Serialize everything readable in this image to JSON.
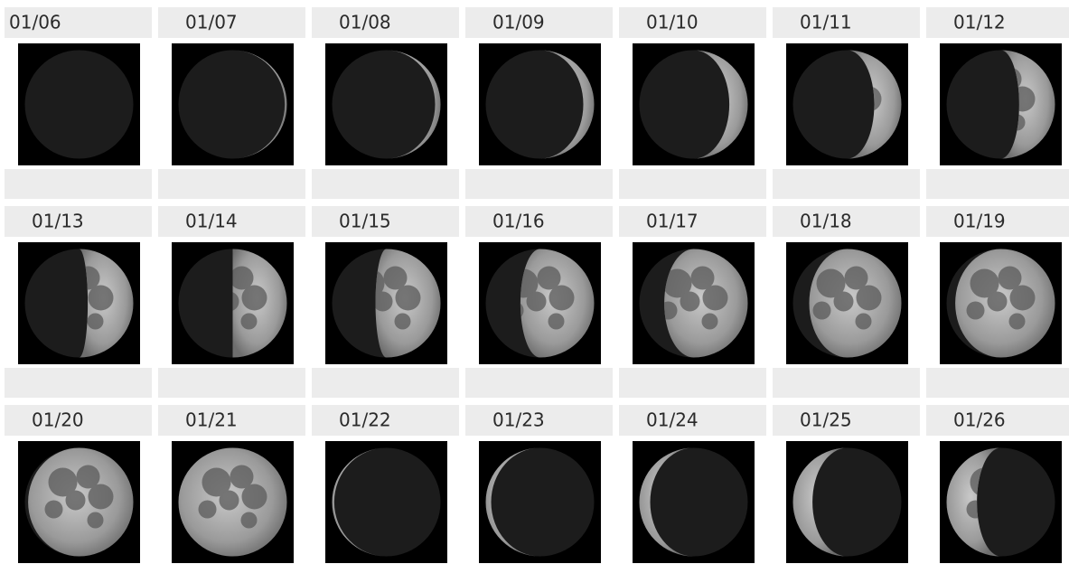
{
  "rows": [
    {
      "dates": [
        "01/06",
        "01/07",
        "01/08",
        "01/09",
        "01/10",
        "01/11",
        "01/12"
      ]
    },
    {
      "dates": [
        "01/13",
        "01/14",
        "01/15",
        "01/16",
        "01/17",
        "01/18",
        "01/19"
      ]
    },
    {
      "dates": [
        "01/20",
        "01/21",
        "01/22",
        "01/23",
        "01/24",
        "01/25",
        "01/26"
      ]
    }
  ]
}
